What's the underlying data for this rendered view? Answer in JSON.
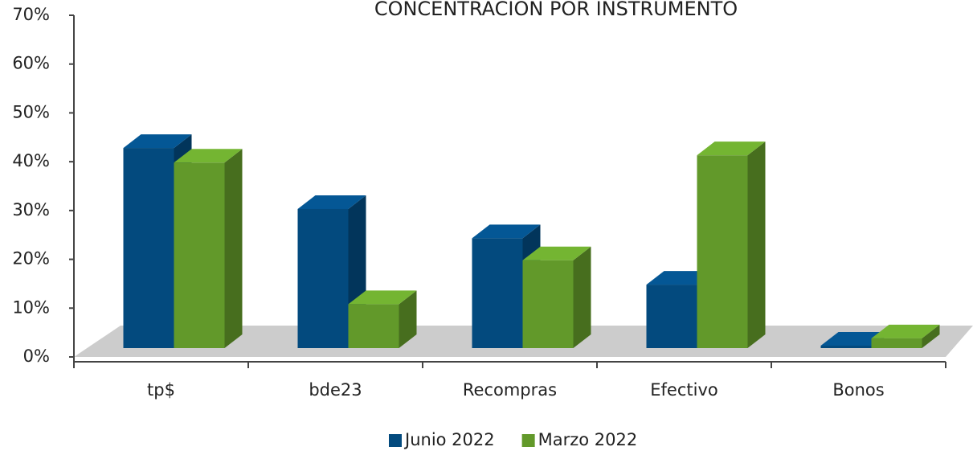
{
  "chart_data": {
    "type": "bar3d",
    "title": "CONCENTRACION POR INSTRUMENTO",
    "categories": [
      "tp$",
      "bde23",
      "Recompras",
      "Efectivo",
      "Bonos"
    ],
    "series": [
      {
        "name": "Junio 2022",
        "color": "#034a7e",
        "values": [
          41,
          28.5,
          22.5,
          13,
          0.5
        ]
      },
      {
        "name": "Marzo 2022",
        "color": "#62992a",
        "values": [
          38,
          9,
          18,
          39.5,
          2
        ]
      }
    ],
    "ylim": [
      0,
      70
    ],
    "yticks": [
      {
        "value": 0,
        "label": "0%"
      },
      {
        "value": 10,
        "label": "10%"
      },
      {
        "value": 20,
        "label": "20%"
      },
      {
        "value": 30,
        "label": "30%"
      },
      {
        "value": 40,
        "label": "40%"
      },
      {
        "value": 50,
        "label": "50%"
      },
      {
        "value": 60,
        "label": "60%"
      },
      {
        "value": 70,
        "label": "70%"
      }
    ]
  }
}
